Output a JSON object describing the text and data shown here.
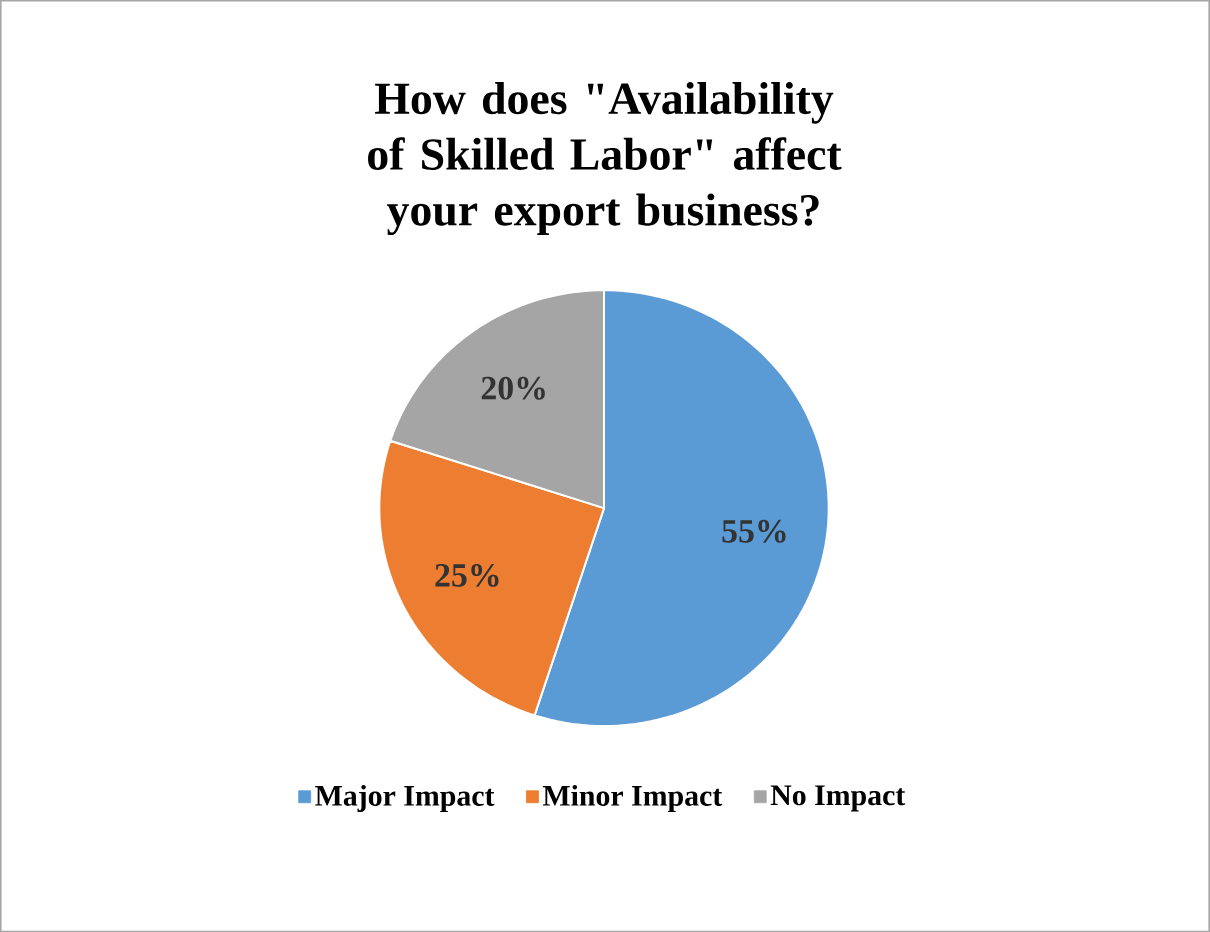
{
  "chart_data": {
    "type": "pie",
    "title": "How does \"Availability of Skilled Labor\" affect your export business?",
    "categories": [
      "Major Impact",
      "Minor Impact",
      "No Impact"
    ],
    "values": [
      55,
      25,
      20
    ],
    "value_labels": [
      "55%",
      "25%",
      "20%"
    ],
    "colors": [
      "#5b9bd5",
      "#ed7d31",
      "#a5a5a5"
    ],
    "legend": "bottom"
  }
}
